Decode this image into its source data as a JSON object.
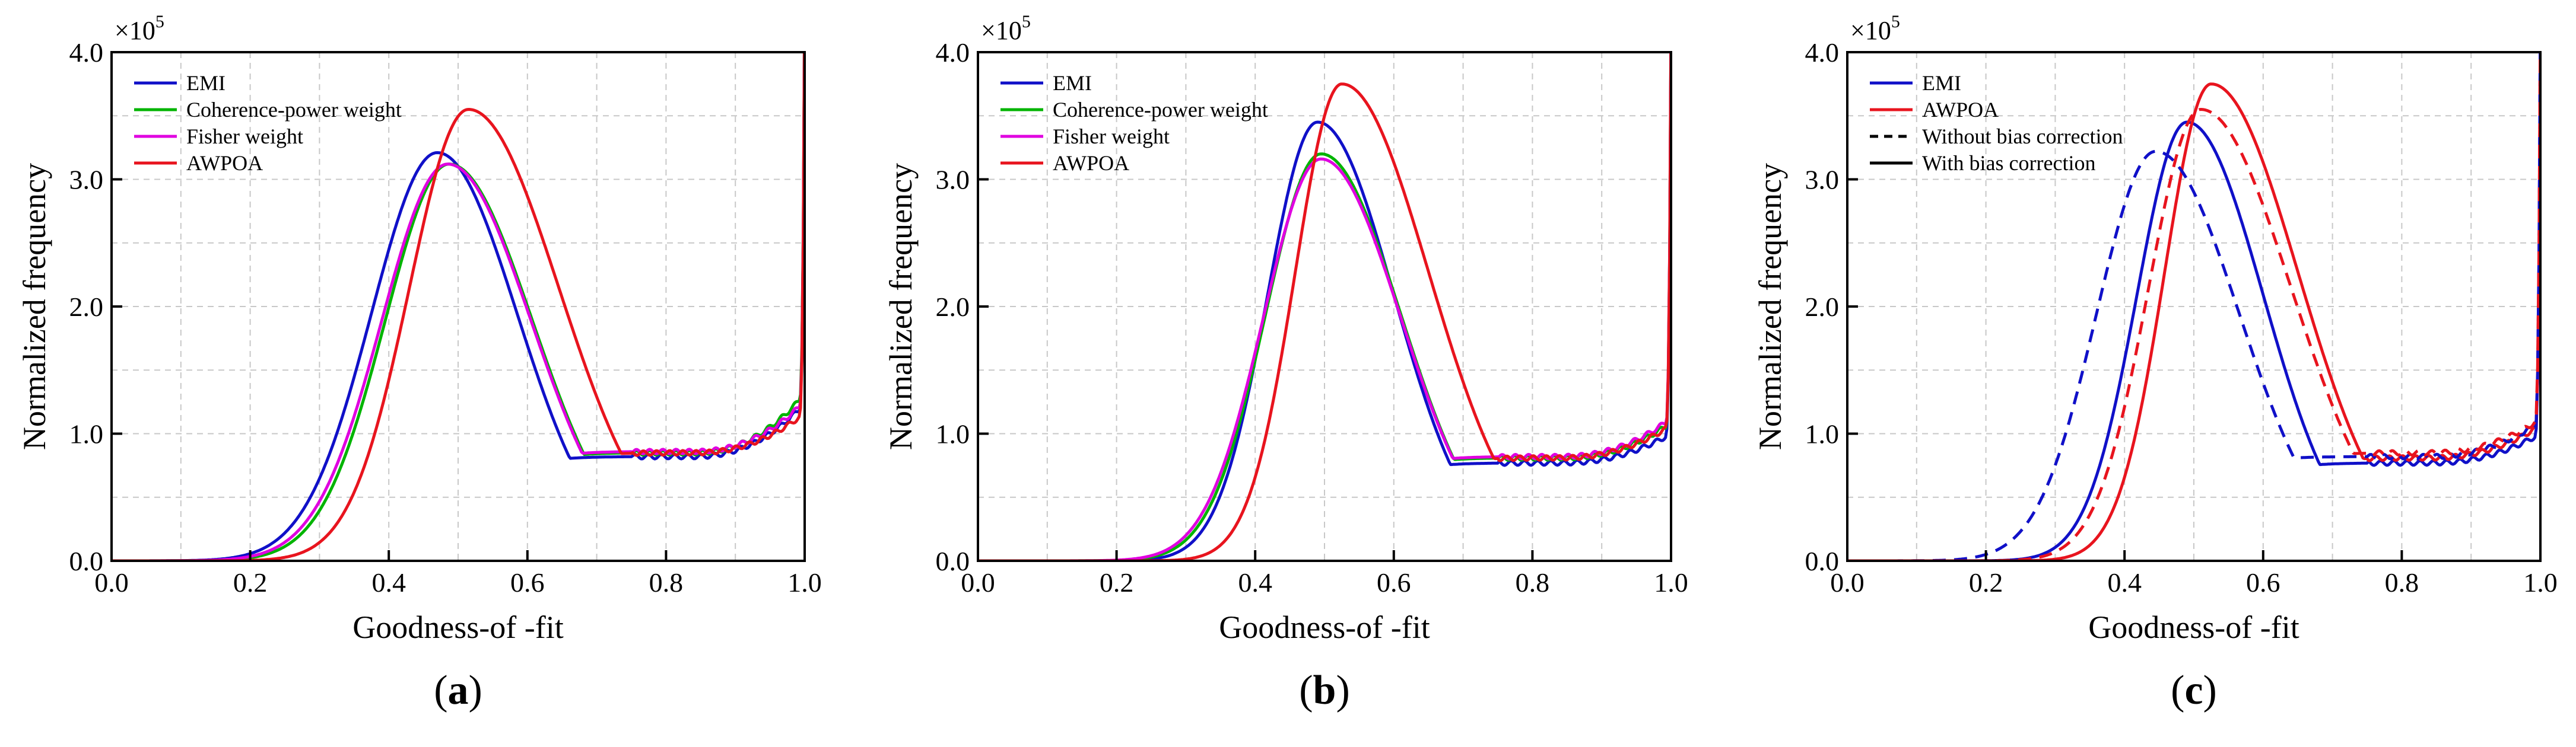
{
  "chart_data": [
    {
      "type": "line",
      "panel_label": "a",
      "xlabel": "Goodness-of -fit",
      "ylabel": "Normalized  frequency",
      "multiplier": "×10",
      "multiplier_exp": "5",
      "xlim": [
        0.0,
        1.0
      ],
      "ylim": [
        0.0,
        4.0
      ],
      "xticks": [
        "0.0",
        "0.2",
        "0.4",
        "0.6",
        "0.8",
        "1.0"
      ],
      "yticks": [
        "0.0",
        "1.0",
        "2.0",
        "3.0",
        "4.0"
      ],
      "grid": true,
      "legend_position": "top-left",
      "legend": [
        {
          "name": "EMI",
          "color": "#1010c8",
          "dash": "solid"
        },
        {
          "name": "Coherence-power weight",
          "color": "#00b400",
          "dash": "solid"
        },
        {
          "name": "Fisher weight",
          "color": "#e000e0",
          "dash": "solid"
        },
        {
          "name": "AWPOA",
          "color": "#e8141e",
          "dash": "solid"
        }
      ],
      "series": [
        {
          "name": "EMI",
          "color": "#1010c8",
          "dash": "solid",
          "peak_x": 0.47,
          "peak": 3.21,
          "width_left": 0.095,
          "width_right": 0.115,
          "tail_min": 0.82,
          "tail_end": 1.18
        },
        {
          "name": "Coherence-power weight",
          "color": "#00b400",
          "dash": "solid",
          "peak_x": 0.487,
          "peak": 3.12,
          "width_left": 0.092,
          "width_right": 0.12,
          "tail_min": 0.85,
          "tail_end": 1.25
        },
        {
          "name": "Fisher weight",
          "color": "#e000e0",
          "dash": "solid",
          "peak_x": 0.485,
          "peak": 3.12,
          "width_left": 0.095,
          "width_right": 0.12,
          "tail_min": 0.86,
          "tail_end": 1.2
        },
        {
          "name": "AWPOA",
          "color": "#e8141e",
          "dash": "solid",
          "peak_x": 0.515,
          "peak": 3.55,
          "width_left": 0.085,
          "width_right": 0.13,
          "tail_min": 0.85,
          "tail_end": 1.12
        }
      ]
    },
    {
      "type": "line",
      "panel_label": "b",
      "xlabel": "Goodness-of -fit",
      "ylabel": "Normalized  frequency",
      "multiplier": "×10",
      "multiplier_exp": "5",
      "xlim": [
        0.0,
        1.0
      ],
      "ylim": [
        0.0,
        4.0
      ],
      "xticks": [
        "0.0",
        "0.2",
        "0.4",
        "0.6",
        "0.8",
        "1.0"
      ],
      "yticks": [
        "0.0",
        "1.0",
        "2.0",
        "3.0",
        "4.0"
      ],
      "grid": true,
      "legend_position": "top-left",
      "legend": [
        {
          "name": "EMI",
          "color": "#1010c8",
          "dash": "solid"
        },
        {
          "name": "Coherence-power weight",
          "color": "#00b400",
          "dash": "solid"
        },
        {
          "name": "Fisher weight",
          "color": "#e000e0",
          "dash": "solid"
        },
        {
          "name": "AWPOA",
          "color": "#e8141e",
          "dash": "solid"
        }
      ],
      "series": [
        {
          "name": "EMI",
          "color": "#1010c8",
          "dash": "solid",
          "peak_x": 0.49,
          "peak": 3.45,
          "width_left": 0.072,
          "width_right": 0.11,
          "tail_min": 0.77,
          "tail_end": 0.97
        },
        {
          "name": "Coherence-power weight",
          "color": "#00b400",
          "dash": "solid",
          "peak_x": 0.495,
          "peak": 3.2,
          "width_left": 0.08,
          "width_right": 0.115,
          "tail_min": 0.81,
          "tail_end": 1.05
        },
        {
          "name": "Fisher weight",
          "color": "#e000e0",
          "dash": "solid",
          "peak_x": 0.495,
          "peak": 3.16,
          "width_left": 0.083,
          "width_right": 0.115,
          "tail_min": 0.82,
          "tail_end": 1.08
        },
        {
          "name": "AWPOA",
          "color": "#e8141e",
          "dash": "solid",
          "peak_x": 0.525,
          "peak": 3.75,
          "width_left": 0.067,
          "width_right": 0.125,
          "tail_min": 0.81,
          "tail_end": 1.03
        }
      ]
    },
    {
      "type": "line",
      "panel_label": "c",
      "xlabel": "Goodness-of -fit",
      "ylabel": "Normalized  frequency",
      "multiplier": "×10",
      "multiplier_exp": "5",
      "xlim": [
        0.0,
        1.0
      ],
      "ylim": [
        0.0,
        4.0
      ],
      "xticks": [
        "0.0",
        "0.2",
        "0.4",
        "0.6",
        "0.8",
        "1.0"
      ],
      "yticks": [
        "0.0",
        "1.0",
        "2.0",
        "3.0",
        "4.0"
      ],
      "grid": true,
      "legend_position": "top-left",
      "legend": [
        {
          "name": "EMI",
          "color": "#1010c8",
          "dash": "solid"
        },
        {
          "name": "AWPOA",
          "color": "#e8141e",
          "dash": "solid"
        },
        {
          "name": "Without bias correction",
          "color": "#000000",
          "dash": "dashed"
        },
        {
          "name": "With bias correction",
          "color": "#000000",
          "dash": "solid"
        }
      ],
      "series": [
        {
          "name": "EMI (with bias correction)",
          "color": "#1010c8",
          "dash": "solid",
          "peak_x": 0.49,
          "peak": 3.45,
          "width_left": 0.072,
          "width_right": 0.11,
          "tail_min": 0.77,
          "tail_end": 0.97
        },
        {
          "name": "AWPOA (with bias correction)",
          "color": "#e8141e",
          "dash": "solid",
          "peak_x": 0.525,
          "peak": 3.75,
          "width_left": 0.067,
          "width_right": 0.125,
          "tail_min": 0.81,
          "tail_end": 1.03
        },
        {
          "name": "EMI (without bias correction)",
          "color": "#1010c8",
          "dash": "dashed",
          "peak_x": 0.445,
          "peak": 3.22,
          "width_left": 0.085,
          "width_right": 0.12,
          "tail_min": 0.82,
          "tail_end": 1.06
        },
        {
          "name": "AWPOA (without bias correction)",
          "color": "#e8141e",
          "dash": "dashed",
          "peak_x": 0.51,
          "peak": 3.55,
          "width_left": 0.075,
          "width_right": 0.13,
          "tail_min": 0.85,
          "tail_end": 1.08
        }
      ]
    }
  ]
}
